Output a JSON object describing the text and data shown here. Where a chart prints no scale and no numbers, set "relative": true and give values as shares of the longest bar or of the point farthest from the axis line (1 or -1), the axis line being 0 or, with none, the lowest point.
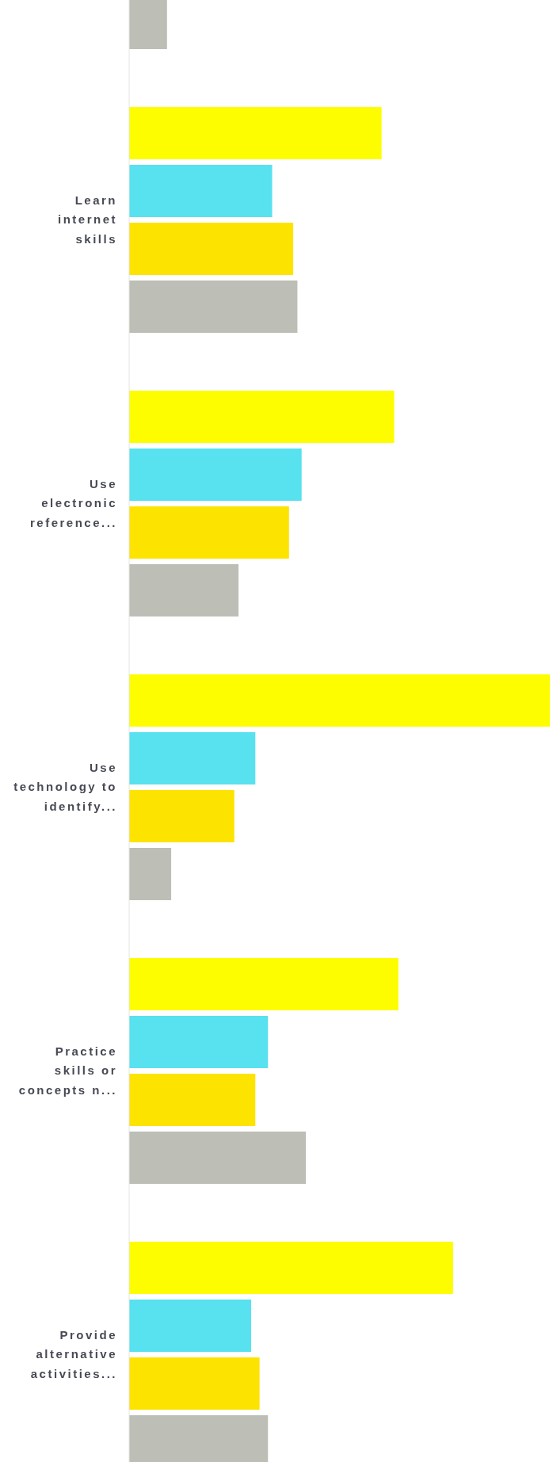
{
  "chart_data": {
    "type": "bar",
    "orientation": "horizontal",
    "relative": true,
    "categories": [
      null,
      "Learn internet skills",
      "Use electronic reference...",
      "Use technology to identify...",
      "Practice skills or concepts n...",
      "Provide alternative activities..."
    ],
    "series": [
      {
        "color": "#fdfd00",
        "values": [
          null,
          0.6,
          0.63,
          1,
          0.64,
          0.77
        ]
      },
      {
        "color": "#58e1ef",
        "values": [
          null,
          0.34,
          0.41,
          0.3,
          0.33,
          0.29
        ]
      },
      {
        "color": "#fde300",
        "values": [
          null,
          0.39,
          0.38,
          0.25,
          0.3,
          0.31
        ]
      },
      {
        "color": "#bdbeb6",
        "values": [
          0.09,
          0.4,
          0.26,
          0.1,
          0.42,
          0.33
        ]
      }
    ]
  }
}
